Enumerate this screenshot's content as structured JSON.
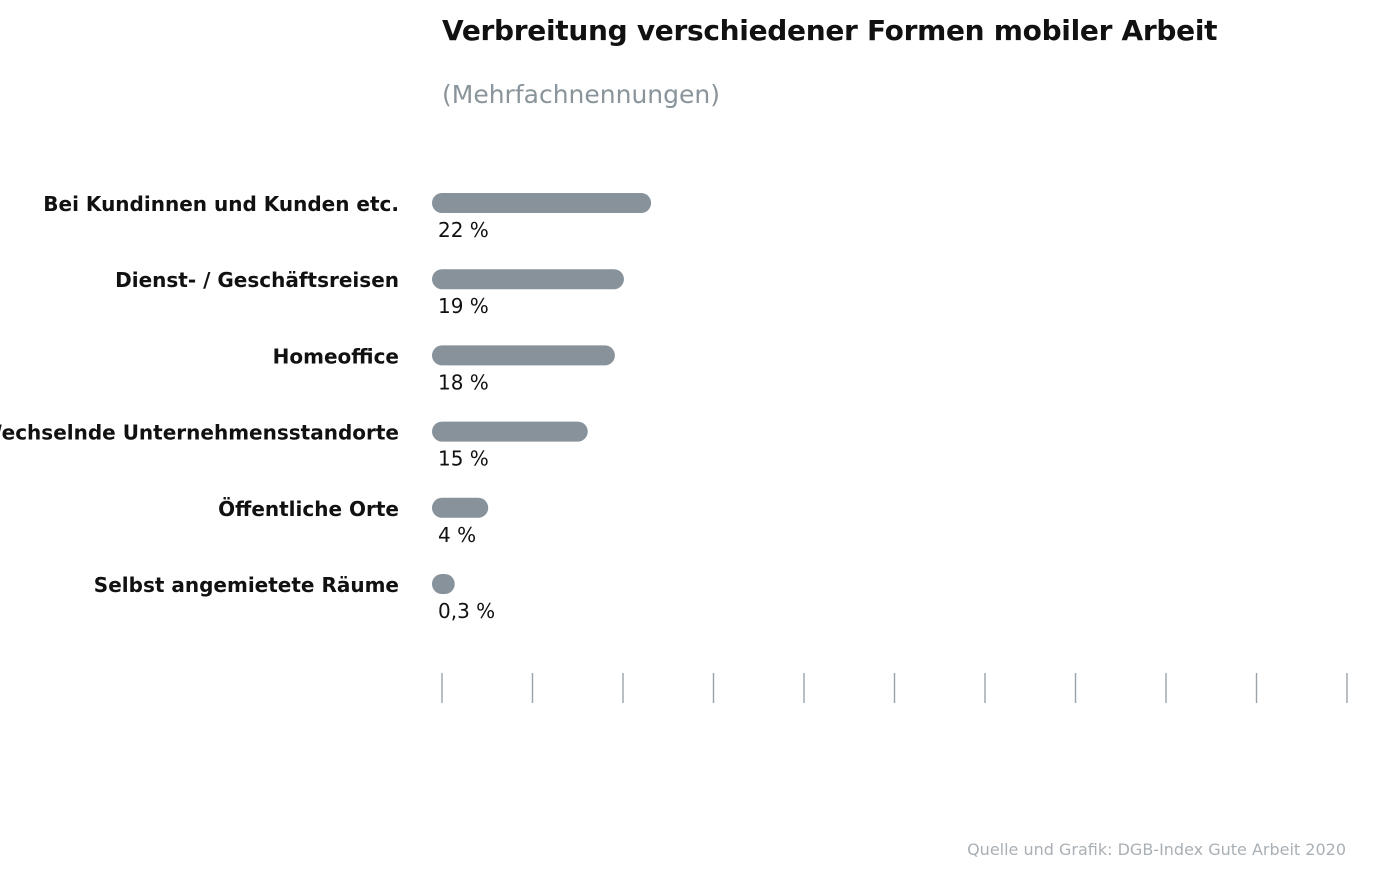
{
  "chart_data": {
    "type": "bar",
    "orientation": "horizontal",
    "title": "Verbreitung verschiedener Formen mobiler Arbeit",
    "subtitle": "(Mehrfachnennungen)",
    "source": "Quelle und Grafik: DGB-Index Gute Arbeit 2020",
    "categories": [
      "Bei Kundinnen und Kunden etc.",
      "Dienst- / Geschäftsreisen",
      "Homeoffice",
      "Wechselnde Unternehmensstandorte",
      "Öffentliche Orte",
      "Selbst angemietete Räume"
    ],
    "values": [
      22,
      19,
      18,
      15,
      4,
      0.3
    ],
    "value_labels": [
      "22 %",
      "19 %",
      "18 %",
      "15 %",
      "4 %",
      "0,3 %"
    ],
    "unit": "%",
    "xlim": [
      0,
      100
    ],
    "tick_count": 11,
    "bar_color": "#87929a",
    "tick_color": "#9aa2a8",
    "grid": false,
    "legend": "none"
  }
}
